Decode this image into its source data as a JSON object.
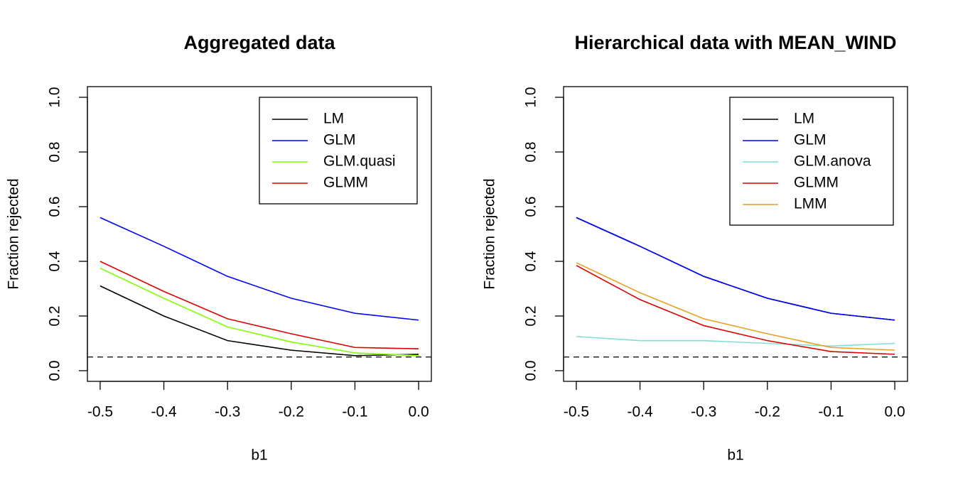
{
  "chart_data": [
    {
      "type": "line",
      "title": "Aggregated data",
      "xlabel": "b1",
      "ylabel": "Fraction rejected",
      "x": [
        -0.5,
        -0.4,
        -0.3,
        -0.2,
        -0.1,
        0
      ],
      "series": [
        {
          "name": "LM",
          "color": "#000000",
          "values": [
            0.31,
            0.2,
            0.11,
            0.075,
            0.055,
            0.06
          ]
        },
        {
          "name": "GLM",
          "color": "#0000ff",
          "values": [
            0.56,
            0.455,
            0.345,
            0.265,
            0.21,
            0.185
          ]
        },
        {
          "name": "GLM.quasi",
          "color": "#80ff00",
          "values": [
            0.375,
            0.265,
            0.16,
            0.105,
            0.065,
            0.055
          ]
        },
        {
          "name": "GLMM",
          "color": "#dd0000",
          "values": [
            0.4,
            0.29,
            0.19,
            0.135,
            0.085,
            0.08
          ]
        }
      ],
      "hline": 0.05,
      "xlim": [
        -0.52,
        0.02
      ],
      "ylim": [
        -0.039,
        1.039
      ],
      "xticks": [
        -0.5,
        -0.4,
        -0.3,
        -0.2,
        -0.1,
        {
          "value": 0,
          "label": "0.0"
        }
      ],
      "yticks": [
        {
          "value": 0,
          "label": "0.0"
        },
        0.2,
        0.4,
        0.6,
        0.8,
        {
          "value": 1,
          "label": "1.0"
        }
      ],
      "legend": "top-right"
    },
    {
      "type": "line",
      "title": "Hierarchical data with MEAN_WIND",
      "xlabel": "b1",
      "ylabel": "Fraction rejected",
      "x": [
        -0.5,
        -0.4,
        -0.3,
        -0.2,
        -0.1,
        0
      ],
      "series": [
        {
          "name": "LM",
          "color": "#000000",
          "values": [
            0.56,
            0.455,
            0.345,
            0.265,
            0.21,
            0.185
          ]
        },
        {
          "name": "GLM",
          "color": "#0000ff",
          "values": [
            0.56,
            0.455,
            0.345,
            0.265,
            0.21,
            0.185
          ]
        },
        {
          "name": "GLM.anova",
          "color": "#7fe0d0",
          "values": [
            0.125,
            0.11,
            0.11,
            0.1,
            0.09,
            0.1
          ]
        },
        {
          "name": "GLMM",
          "color": "#dd0000",
          "values": [
            0.385,
            0.26,
            0.165,
            0.11,
            0.07,
            0.06
          ]
        },
        {
          "name": "LMM",
          "color": "#e8a020",
          "values": [
            0.395,
            0.285,
            0.19,
            0.135,
            0.085,
            0.075
          ]
        }
      ],
      "hline": 0.05,
      "xlim": [
        -0.52,
        0.02
      ],
      "ylim": [
        -0.039,
        1.039
      ],
      "xticks": [
        -0.5,
        -0.4,
        -0.3,
        -0.2,
        -0.1,
        {
          "value": 0,
          "label": "0.0"
        }
      ],
      "yticks": [
        {
          "value": 0,
          "label": "0.0"
        },
        0.2,
        0.4,
        0.6,
        0.8,
        {
          "value": 1,
          "label": "1.0"
        }
      ],
      "legend": "top-right"
    }
  ]
}
